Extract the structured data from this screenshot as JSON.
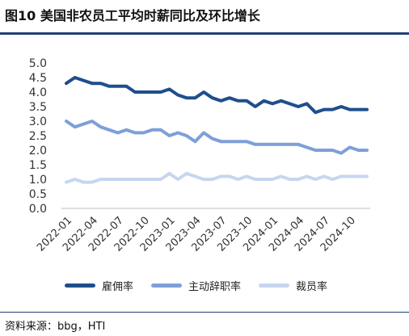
{
  "title": "图10 美国非农员工平均时薪同比及环比增长",
  "source": "资料来源：bbg，HTI",
  "colors": {
    "series1": "#1f4e8c",
    "series2": "#7e9fd9",
    "series3": "#c7d6ef",
    "rule": "#1f3f78"
  },
  "chart_data": {
    "type": "line",
    "title": "图10 美国非农员工平均时薪同比及环比增长",
    "xlabel": "",
    "ylabel": "",
    "ylim": [
      0,
      5
    ],
    "yticks": [
      "0.0",
      "0.5",
      "1.0",
      "1.5",
      "2.0",
      "2.5",
      "3.0",
      "3.5",
      "4.0",
      "4.5",
      "5.0"
    ],
    "grid": false,
    "legend_position": "bottom",
    "x": [
      "2022-01",
      "2022-02",
      "2022-03",
      "2022-04",
      "2022-05",
      "2022-06",
      "2022-07",
      "2022-08",
      "2022-09",
      "2022-10",
      "2022-11",
      "2022-12",
      "2023-01",
      "2023-02",
      "2023-03",
      "2023-04",
      "2023-05",
      "2023-06",
      "2023-07",
      "2023-08",
      "2023-09",
      "2023-10",
      "2023-11",
      "2023-12",
      "2024-01",
      "2024-02",
      "2024-03",
      "2024-04",
      "2024-05",
      "2024-06",
      "2024-07",
      "2024-08",
      "2024-09",
      "2024-10",
      "2024-11",
      "2024-12"
    ],
    "xtick_labels": [
      "2022-01",
      "2022-04",
      "2022-07",
      "2022-10",
      "2023-01",
      "2023-04",
      "2023-07",
      "2023-10",
      "2024-01",
      "2024-04",
      "2024-07",
      "2024-10"
    ],
    "series": [
      {
        "name": "雇佣率",
        "values": [
          4.3,
          4.5,
          4.4,
          4.3,
          4.3,
          4.2,
          4.2,
          4.2,
          4.0,
          4.0,
          4.0,
          4.0,
          4.1,
          3.9,
          3.8,
          3.8,
          4.0,
          3.8,
          3.7,
          3.8,
          3.7,
          3.7,
          3.5,
          3.7,
          3.6,
          3.7,
          3.6,
          3.5,
          3.6,
          3.3,
          3.4,
          3.4,
          3.5,
          3.4,
          3.4,
          3.4
        ]
      },
      {
        "name": "主动辞职率",
        "values": [
          3.0,
          2.8,
          2.9,
          3.0,
          2.8,
          2.7,
          2.6,
          2.7,
          2.6,
          2.6,
          2.7,
          2.7,
          2.5,
          2.6,
          2.5,
          2.3,
          2.6,
          2.4,
          2.3,
          2.3,
          2.3,
          2.3,
          2.2,
          2.2,
          2.2,
          2.2,
          2.2,
          2.2,
          2.1,
          2.0,
          2.0,
          2.0,
          1.9,
          2.1,
          2.0,
          2.0
        ]
      },
      {
        "name": "裁员率",
        "values": [
          0.9,
          1.0,
          0.9,
          0.9,
          1.0,
          1.0,
          1.0,
          1.0,
          1.0,
          1.0,
          1.0,
          1.0,
          1.2,
          1.0,
          1.2,
          1.1,
          1.0,
          1.0,
          1.1,
          1.1,
          1.0,
          1.1,
          1.0,
          1.0,
          1.0,
          1.1,
          1.0,
          1.0,
          1.1,
          1.0,
          1.1,
          1.0,
          1.1,
          1.1,
          1.1,
          1.1
        ]
      }
    ]
  }
}
